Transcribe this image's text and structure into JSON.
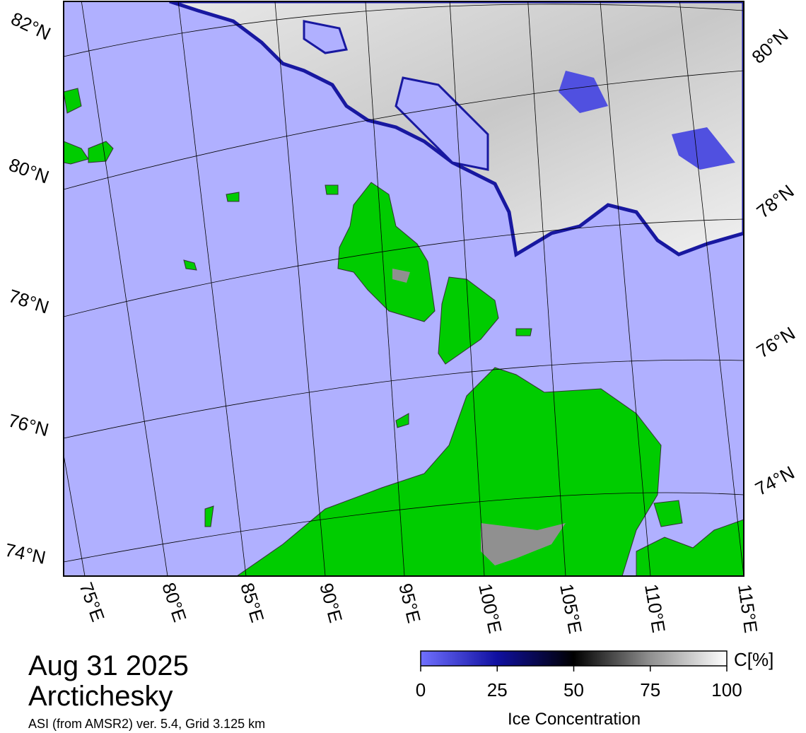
{
  "map": {
    "title_date": "Aug 31 2025",
    "region": "Arctichesky",
    "source": "ASI (from AMSR2) ver. 5.4,  Grid 3.125 km",
    "lat_labels_left": [
      "82°N",
      "80°N",
      "78°N",
      "76°N",
      "74°N"
    ],
    "lat_labels_right": [
      "80°N",
      "78°N",
      "76°N",
      "74°N"
    ],
    "lon_labels": [
      "75°E",
      "80°E",
      "85°E",
      "90°E",
      "95°E",
      "100°E",
      "105°E",
      "110°E",
      "115°E"
    ]
  },
  "colorbar": {
    "label": "Ice Concentration",
    "unit": "C[%]",
    "range": [
      0,
      100
    ],
    "ticks": [
      0,
      25,
      50,
      75,
      100
    ]
  }
}
